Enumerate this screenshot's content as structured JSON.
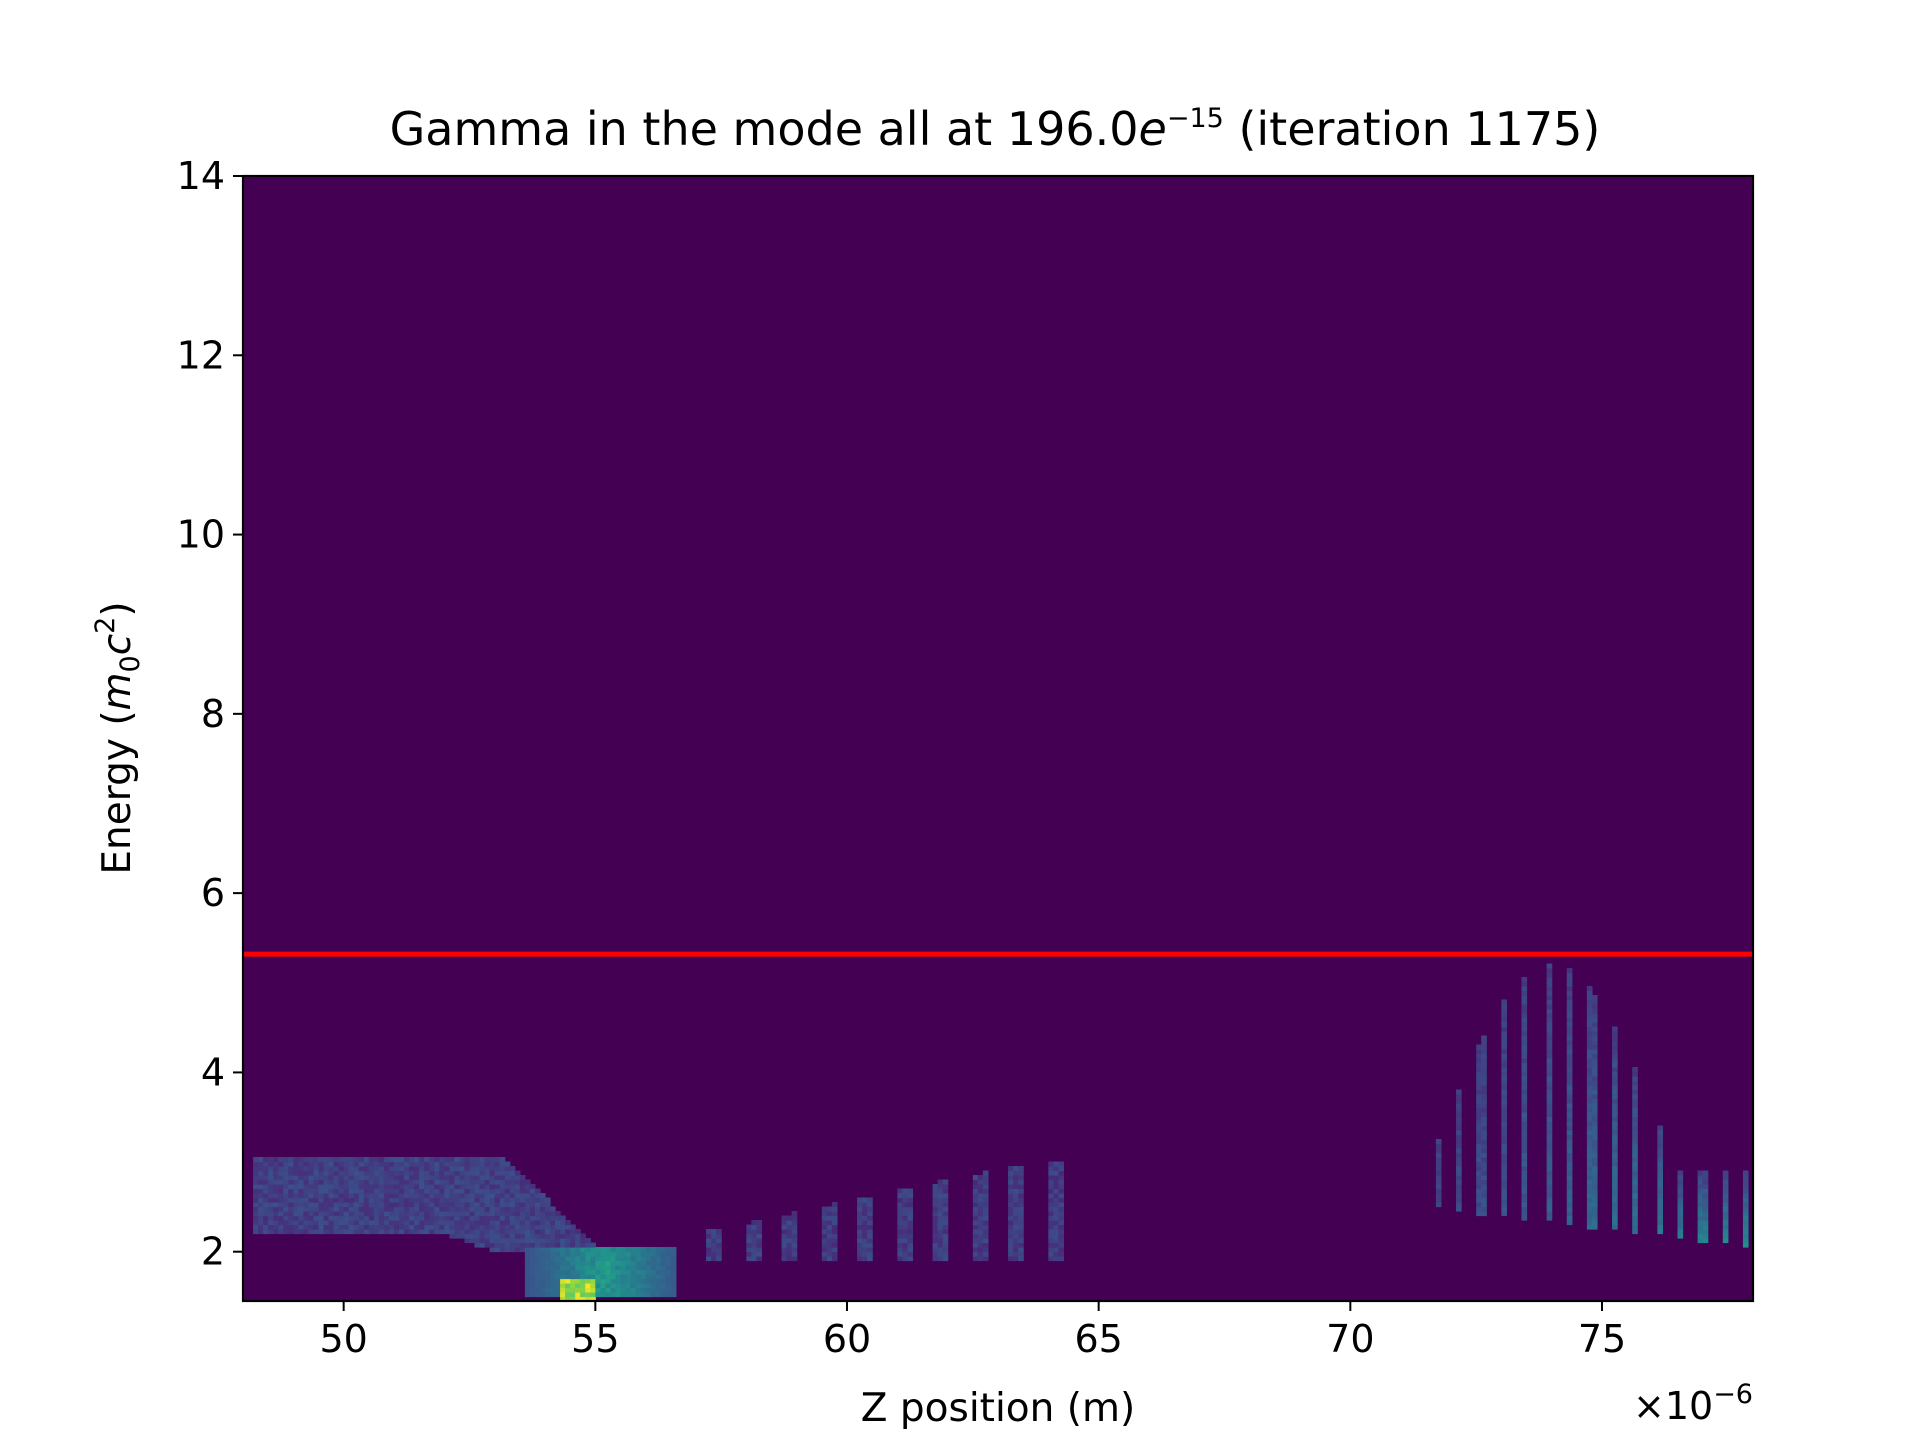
{
  "chart_data": {
    "type": "heatmap",
    "title": {
      "prefix": "Gamma in the mode all at 196.0",
      "italic_symbol": "e",
      "exponent": "−15",
      "suffix": " (iteration 1175)"
    },
    "xlabel": "Z position (m)",
    "ylabel": {
      "prefix": "Energy (",
      "m": "m",
      "m_subscript": "0",
      "c": "c",
      "c_superscript": "2",
      "suffix": ")"
    },
    "x_offset_label": {
      "base": "×10",
      "exponent": "−6"
    },
    "xlim": [
      48,
      78
    ],
    "ylim": [
      1.45,
      14
    ],
    "x_scale_factor": "1e-6",
    "x_ticks": [
      50,
      55,
      60,
      65,
      70,
      75
    ],
    "x_tick_labels": [
      "50",
      "55",
      "60",
      "65",
      "70",
      "75"
    ],
    "y_ticks": [
      2,
      4,
      6,
      8,
      10,
      12,
      14
    ],
    "y_tick_labels": [
      "2",
      "4",
      "6",
      "8",
      "10",
      "12",
      "14"
    ],
    "colormap": "viridis",
    "background_color": "#440154",
    "threshold_line": {
      "y": 5.32,
      "color": "#ff0000"
    },
    "clusters": [
      {
        "name": "left-bunch-upper",
        "z_range": [
          48.2,
          55.5
        ],
        "energy_range": [
          2.3,
          3.05
        ],
        "peak_energy": 2.7,
        "intensity": 0.18
      },
      {
        "name": "left-bunch-core",
        "z_range": [
          52.5,
          56.6
        ],
        "energy_range": [
          1.5,
          2.1
        ],
        "peak_energy": 1.75,
        "intensity": 0.55
      },
      {
        "name": "left-bunch-hotspot",
        "z_range": [
          54.3,
          55.0
        ],
        "energy_range": [
          1.45,
          1.65
        ],
        "peak_energy": 1.5,
        "intensity": 1.0
      },
      {
        "name": "middle-streaks",
        "z_range": [
          57.0,
          64.5
        ],
        "energy_range": [
          1.9,
          3.0
        ],
        "peak_energy": 2.2,
        "intensity": 0.16
      },
      {
        "name": "right-bunch",
        "z_range": [
          71.5,
          78.0
        ],
        "energy_range": [
          2.05,
          5.2
        ],
        "peak_energy": 2.4,
        "intensity": 0.4
      }
    ]
  }
}
